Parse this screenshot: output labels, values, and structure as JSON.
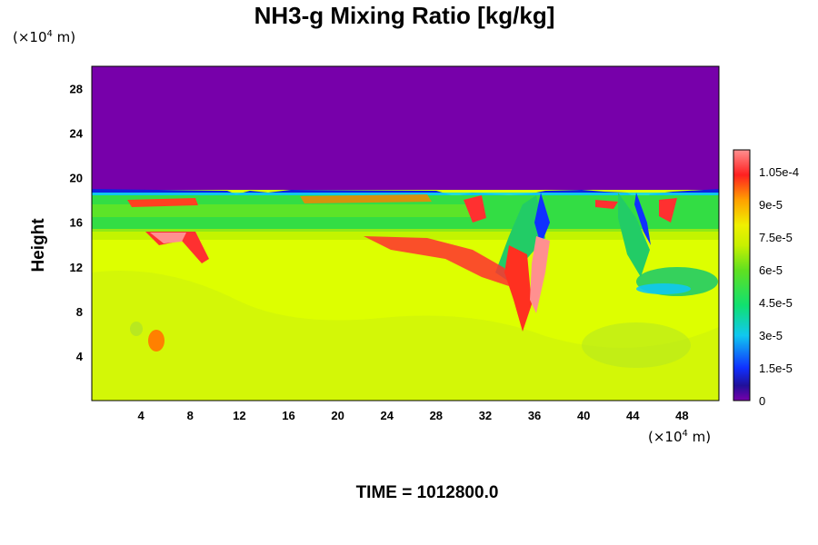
{
  "chart_data": {
    "type": "heatmap",
    "title": "NH3-g Mixing Ratio [kg/kg]",
    "ylabel": "Height",
    "y_unit": {
      "prefix": "(×10",
      "exp": "4",
      "suffix": " m)"
    },
    "x_unit": {
      "prefix": "(×10",
      "exp": "4",
      "suffix": " m)"
    },
    "xlim": [
      0,
      51
    ],
    "ylim": [
      0,
      30
    ],
    "x_ticks": [
      "4",
      "8",
      "12",
      "16",
      "20",
      "24",
      "28",
      "32",
      "36",
      "40",
      "44",
      "48"
    ],
    "y_ticks": [
      "4",
      "8",
      "12",
      "16",
      "20",
      "24",
      "28"
    ],
    "colorbar": {
      "range": [
        0,
        0.000115
      ],
      "tick_labels": [
        "0",
        "1.5e-5",
        "3e-5",
        "4.5e-5",
        "6e-5",
        "7.5e-5",
        "9e-5",
        "1.05e-4"
      ],
      "tick_values": [
        0,
        1.5e-05,
        3e-05,
        4.5e-05,
        6e-05,
        7.5e-05,
        9e-05,
        0.000105
      ]
    },
    "fields": {
      "upper_value": 0,
      "lower_background_value": 7.65e-05,
      "cloud_band_value": 5.8e-05,
      "tropopause_height": 18.8
    },
    "footer": "TIME = 1012800.0"
  }
}
